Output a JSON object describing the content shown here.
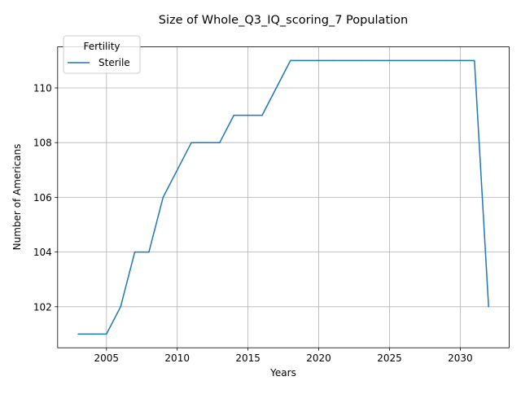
{
  "chart_data": {
    "type": "line",
    "title": "Size of Whole_Q3_IQ_scoring_7 Population",
    "xlabel": "Years",
    "ylabel": "Number of Americans",
    "xlim": [
      2001.55,
      2033.45
    ],
    "ylim": [
      100.5,
      111.5
    ],
    "x_ticks": [
      2005,
      2010,
      2015,
      2020,
      2025,
      2030
    ],
    "y_ticks": [
      102,
      104,
      106,
      108,
      110
    ],
    "grid": true,
    "legend": {
      "title": "Fertility",
      "placement": "top-left"
    },
    "series": [
      {
        "name": "Sterile",
        "color": "#1f77b4",
        "x": [
          2003,
          2004,
          2005,
          2006,
          2007,
          2008,
          2009,
          2010,
          2011,
          2012,
          2013,
          2014,
          2015,
          2016,
          2017,
          2018,
          2019,
          2020,
          2021,
          2022,
          2023,
          2024,
          2025,
          2026,
          2027,
          2028,
          2029,
          2030,
          2031,
          2032
        ],
        "y": [
          101,
          101,
          101,
          102,
          104,
          104,
          106,
          107,
          108,
          108,
          108,
          109,
          109,
          109,
          110,
          111,
          111,
          111,
          111,
          111,
          111,
          111,
          111,
          111,
          111,
          111,
          111,
          111,
          111,
          102
        ]
      }
    ]
  }
}
